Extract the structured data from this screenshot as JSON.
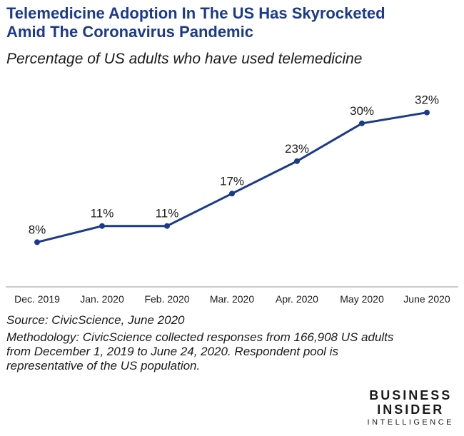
{
  "title_lines": [
    "Telemedicine Adoption In The US Has Skyrocketed",
    "Amid The Coronavirus Pandemic"
  ],
  "subtitle": "Percentage of US adults who have used telemedicine",
  "colors": {
    "title": "#1b3a8c",
    "line": "#1b3a8c",
    "axis": "#9a9a9a"
  },
  "chart_data": {
    "type": "line",
    "categories": [
      "Dec. 2019",
      "Jan. 2020",
      "Feb. 2020",
      "Mar. 2020",
      "Apr. 2020",
      "May 2020",
      "June 2020"
    ],
    "series": [
      {
        "values": [
          8,
          11,
          11,
          17,
          23,
          30,
          32
        ]
      }
    ],
    "data_labels": [
      "8%",
      "11%",
      "11%",
      "17%",
      "23%",
      "30%",
      "32%"
    ],
    "ylim": [
      0,
      35
    ],
    "grid": false,
    "xlabel": "",
    "ylabel": ""
  },
  "source": "Source: CivicScience, June 2020",
  "methodology_lines": [
    "Methodology: CivicScience collected responses from 166,908 US adults",
    "from December 1, 2019 to June 24, 2020. Respondent pool is",
    "representative of the US population."
  ],
  "logo_lines": [
    "BUSINESS",
    "INSIDER",
    "INTELLIGENCE"
  ]
}
